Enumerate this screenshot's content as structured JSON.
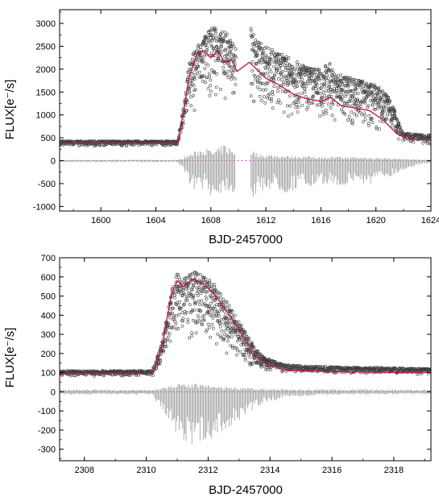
{
  "chart_data": [
    {
      "type": "scatter",
      "title": "",
      "xlabel": "BJD-2457000",
      "ylabel": "FLUX[e⁻/s]",
      "xlim": [
        1597,
        1624
      ],
      "ylim": [
        -1100,
        3300
      ],
      "xticks": [
        1600,
        1604,
        1608,
        1612,
        1616,
        1620,
        1624
      ],
      "xtick_labels": [
        "1600",
        "1604",
        "1608",
        "1612",
        "1616",
        "1620",
        "1624"
      ],
      "yticks": [
        -1000,
        -500,
        0,
        500,
        1000,
        1500,
        2000,
        2500,
        3000
      ],
      "ytick_labels": [
        "-1000",
        "-500",
        "0",
        "500",
        "1000",
        "1500",
        "2000",
        "2500",
        "3000"
      ],
      "gaps": [
        [
          1609.8,
          1610.9
        ]
      ],
      "colors": {
        "data": "#3d3d3d",
        "fit": "#c2185b",
        "residual": "#9a9a9a",
        "zero_line": "#cc44cc"
      },
      "series": [
        {
          "role": "upper_envelope",
          "x": [
            1597,
            1605.6,
            1606.0,
            1606.4,
            1607.0,
            1607.5,
            1607.9,
            1608.3,
            1608.6,
            1609.0,
            1609.4,
            1609.8,
            1610.9,
            1611.3,
            1612,
            1613,
            1614,
            1615,
            1616,
            1616.6,
            1617,
            1618,
            1619,
            1620,
            1621,
            1622,
            1624
          ],
          "y": [
            430,
            430,
            1200,
            2100,
            2550,
            2700,
            2850,
            3000,
            2750,
            2900,
            2650,
            2500,
            2950,
            2650,
            2500,
            2350,
            2200,
            2050,
            2000,
            2150,
            1900,
            1850,
            1750,
            1650,
            1400,
            600,
            560
          ]
        },
        {
          "role": "lower_envelope",
          "x": [
            1597,
            1605.6,
            1606.0,
            1606.4,
            1607.0,
            1607.5,
            1608.0,
            1608.5,
            1609.0,
            1609.5,
            1609.8,
            1610.9,
            1611.5,
            1612,
            1613,
            1614,
            1615,
            1616,
            1617,
            1618,
            1619,
            1620,
            1621,
            1622,
            1624
          ],
          "y": [
            320,
            320,
            700,
            1000,
            1100,
            1300,
            1200,
            1500,
            1150,
            1300,
            1250,
            950,
            1050,
            1000,
            950,
            850,
            900,
            750,
            800,
            650,
            700,
            550,
            600,
            380,
            350
          ]
        },
        {
          "role": "fit",
          "x": [
            1597,
            1605.6,
            1606.0,
            1606.4,
            1607.0,
            1607.5,
            1608.0,
            1608.5,
            1609.0,
            1609.5,
            1609.9,
            1610.8,
            1611.5,
            1612,
            1613,
            1614,
            1615,
            1616,
            1616.7,
            1617.5,
            1618.5,
            1619.5,
            1620.5,
            1621.5,
            1622.2,
            1624
          ],
          "y": [
            380,
            380,
            1050,
            1800,
            2350,
            2400,
            2250,
            2400,
            2150,
            2200,
            1950,
            2150,
            1950,
            1800,
            1650,
            1450,
            1350,
            1300,
            1380,
            1200,
            1150,
            1100,
            900,
            600,
            480,
            450
          ]
        },
        {
          "role": "residual_lower_envelope",
          "x": [
            1597,
            1605.6,
            1606.0,
            1606.8,
            1607.5,
            1608.2,
            1609.0,
            1609.8,
            1610.9,
            1611.5,
            1612.5,
            1613.5,
            1614.5,
            1615.5,
            1616.5,
            1617.5,
            1618.5,
            1619.5,
            1620.5,
            1621.5,
            1622.5,
            1624
          ],
          "y": [
            -30,
            -30,
            -250,
            -700,
            -600,
            -850,
            -650,
            -750,
            -900,
            -700,
            -600,
            -750,
            -550,
            -650,
            -500,
            -600,
            -450,
            -550,
            -400,
            -300,
            -150,
            -50
          ]
        },
        {
          "role": "residual_upper_envelope",
          "x": [
            1597,
            1605.6,
            1606.0,
            1606.8,
            1607.5,
            1608.2,
            1609.0,
            1609.8,
            1610.9,
            1611.5,
            1613,
            1615,
            1617,
            1619,
            1621,
            1622.5,
            1624
          ],
          "y": [
            20,
            20,
            80,
            200,
            300,
            200,
            380,
            200,
            260,
            150,
            120,
            100,
            90,
            80,
            60,
            40,
            20
          ]
        }
      ]
    },
    {
      "type": "scatter",
      "title": "",
      "xlabel": "BJD-2457000",
      "ylabel": "FLUX[e⁻/s]",
      "xlim": [
        2307.2,
        2319.2
      ],
      "ylim": [
        -360,
        700
      ],
      "xticks": [
        2308,
        2310,
        2312,
        2314,
        2316,
        2318
      ],
      "xtick_labels": [
        "2308",
        "2310",
        "2312",
        "2314",
        "2316",
        "2318"
      ],
      "yticks": [
        -300,
        -200,
        -100,
        0,
        100,
        200,
        300,
        400,
        500,
        600,
        700
      ],
      "ytick_labels": [
        "-300",
        "-200",
        "-100",
        "0",
        "100",
        "200",
        "300",
        "400",
        "500",
        "600",
        "700"
      ],
      "gaps": [],
      "colors": {
        "data": "#3d3d3d",
        "fit": "#c2185b",
        "residual": "#9a9a9a",
        "zero_line": "#cc44cc"
      },
      "series": [
        {
          "role": "upper_envelope",
          "x": [
            2307.2,
            2310.2,
            2310.5,
            2310.8,
            2311.0,
            2311.2,
            2311.5,
            2311.8,
            2312.2,
            2312.6,
            2313.0,
            2313.4,
            2313.8,
            2314.5,
            2316,
            2318,
            2319.2
          ],
          "y": [
            110,
            110,
            250,
            520,
            620,
            590,
            640,
            620,
            560,
            470,
            370,
            260,
            180,
            140,
            130,
            125,
            120
          ]
        },
        {
          "role": "lower_envelope",
          "x": [
            2307.2,
            2310.2,
            2310.6,
            2311.0,
            2311.4,
            2311.8,
            2312.2,
            2312.6,
            2313.0,
            2313.4,
            2313.8,
            2314.5,
            2316,
            2319.2
          ],
          "y": [
            80,
            80,
            150,
            230,
            250,
            240,
            200,
            170,
            140,
            120,
            110,
            100,
            95,
            90
          ]
        },
        {
          "role": "fit",
          "x": [
            2307.2,
            2310.2,
            2310.5,
            2310.8,
            2311.0,
            2311.2,
            2311.5,
            2311.8,
            2312.2,
            2312.6,
            2313.0,
            2313.4,
            2313.8,
            2314.5,
            2316,
            2319.2
          ],
          "y": [
            95,
            95,
            230,
            500,
            580,
            550,
            590,
            570,
            510,
            420,
            320,
            220,
            150,
            115,
            105,
            100
          ]
        },
        {
          "role": "residual_lower_envelope",
          "x": [
            2307.2,
            2310.2,
            2310.6,
            2311.0,
            2311.4,
            2311.8,
            2312.2,
            2312.6,
            2313.0,
            2313.4,
            2313.8,
            2314.5,
            2315.5,
            2316.5,
            2319.2
          ],
          "y": [
            -15,
            -15,
            -150,
            -250,
            -290,
            -285,
            -250,
            -200,
            -150,
            -100,
            -60,
            -30,
            -20,
            -15,
            -12
          ]
        },
        {
          "role": "residual_upper_envelope",
          "x": [
            2307.2,
            2310.2,
            2310.6,
            2311.0,
            2311.4,
            2311.8,
            2312.2,
            2313.0,
            2314,
            2319.2
          ],
          "y": [
            12,
            12,
            30,
            40,
            45,
            40,
            30,
            22,
            15,
            12
          ]
        }
      ]
    }
  ]
}
